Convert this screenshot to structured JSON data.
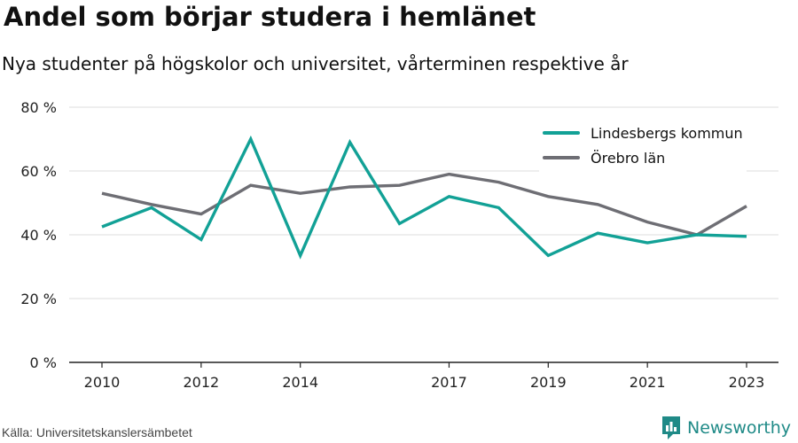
{
  "title": "Andel som börjar studera i hemlänet",
  "subtitle": "Nya studenter på högskolor och universitet, vårterminen respektive år",
  "source": "Källa: Universitetskanslersämbetet",
  "brand": {
    "name": "Newsworthy",
    "color": "#1f8a87",
    "icon": "newsworthy-logo-icon"
  },
  "chart_data": {
    "type": "line",
    "x": [
      2010,
      2011,
      2012,
      2013,
      2014,
      2015,
      2016,
      2017,
      2018,
      2019,
      2020,
      2021,
      2022,
      2023
    ],
    "x_tick_labels": [
      "2010",
      "2012",
      "2014",
      "2017",
      "2019",
      "2021",
      "2023"
    ],
    "y_tick_labels": [
      "0 %",
      "20 %",
      "40 %",
      "60 %",
      "80 %"
    ],
    "y_ticks": [
      0,
      20,
      40,
      60,
      80
    ],
    "ylim": [
      0,
      80
    ],
    "xlim": [
      2010,
      2023
    ],
    "grid": true,
    "legend_position": "top-right",
    "series": [
      {
        "name": "Lindesbergs kommun",
        "color": "#12a196",
        "values": [
          42.5,
          48.5,
          38.5,
          70.0,
          33.5,
          69.0,
          43.5,
          52.0,
          48.5,
          33.5,
          40.5,
          37.5,
          40.0,
          39.5
        ]
      },
      {
        "name": "Örebro län",
        "color": "#6e6e74",
        "values": [
          53.0,
          49.5,
          46.5,
          55.5,
          53.0,
          55.0,
          55.5,
          59.0,
          56.5,
          52.0,
          49.5,
          44.0,
          40.0,
          49.0
        ]
      }
    ]
  }
}
